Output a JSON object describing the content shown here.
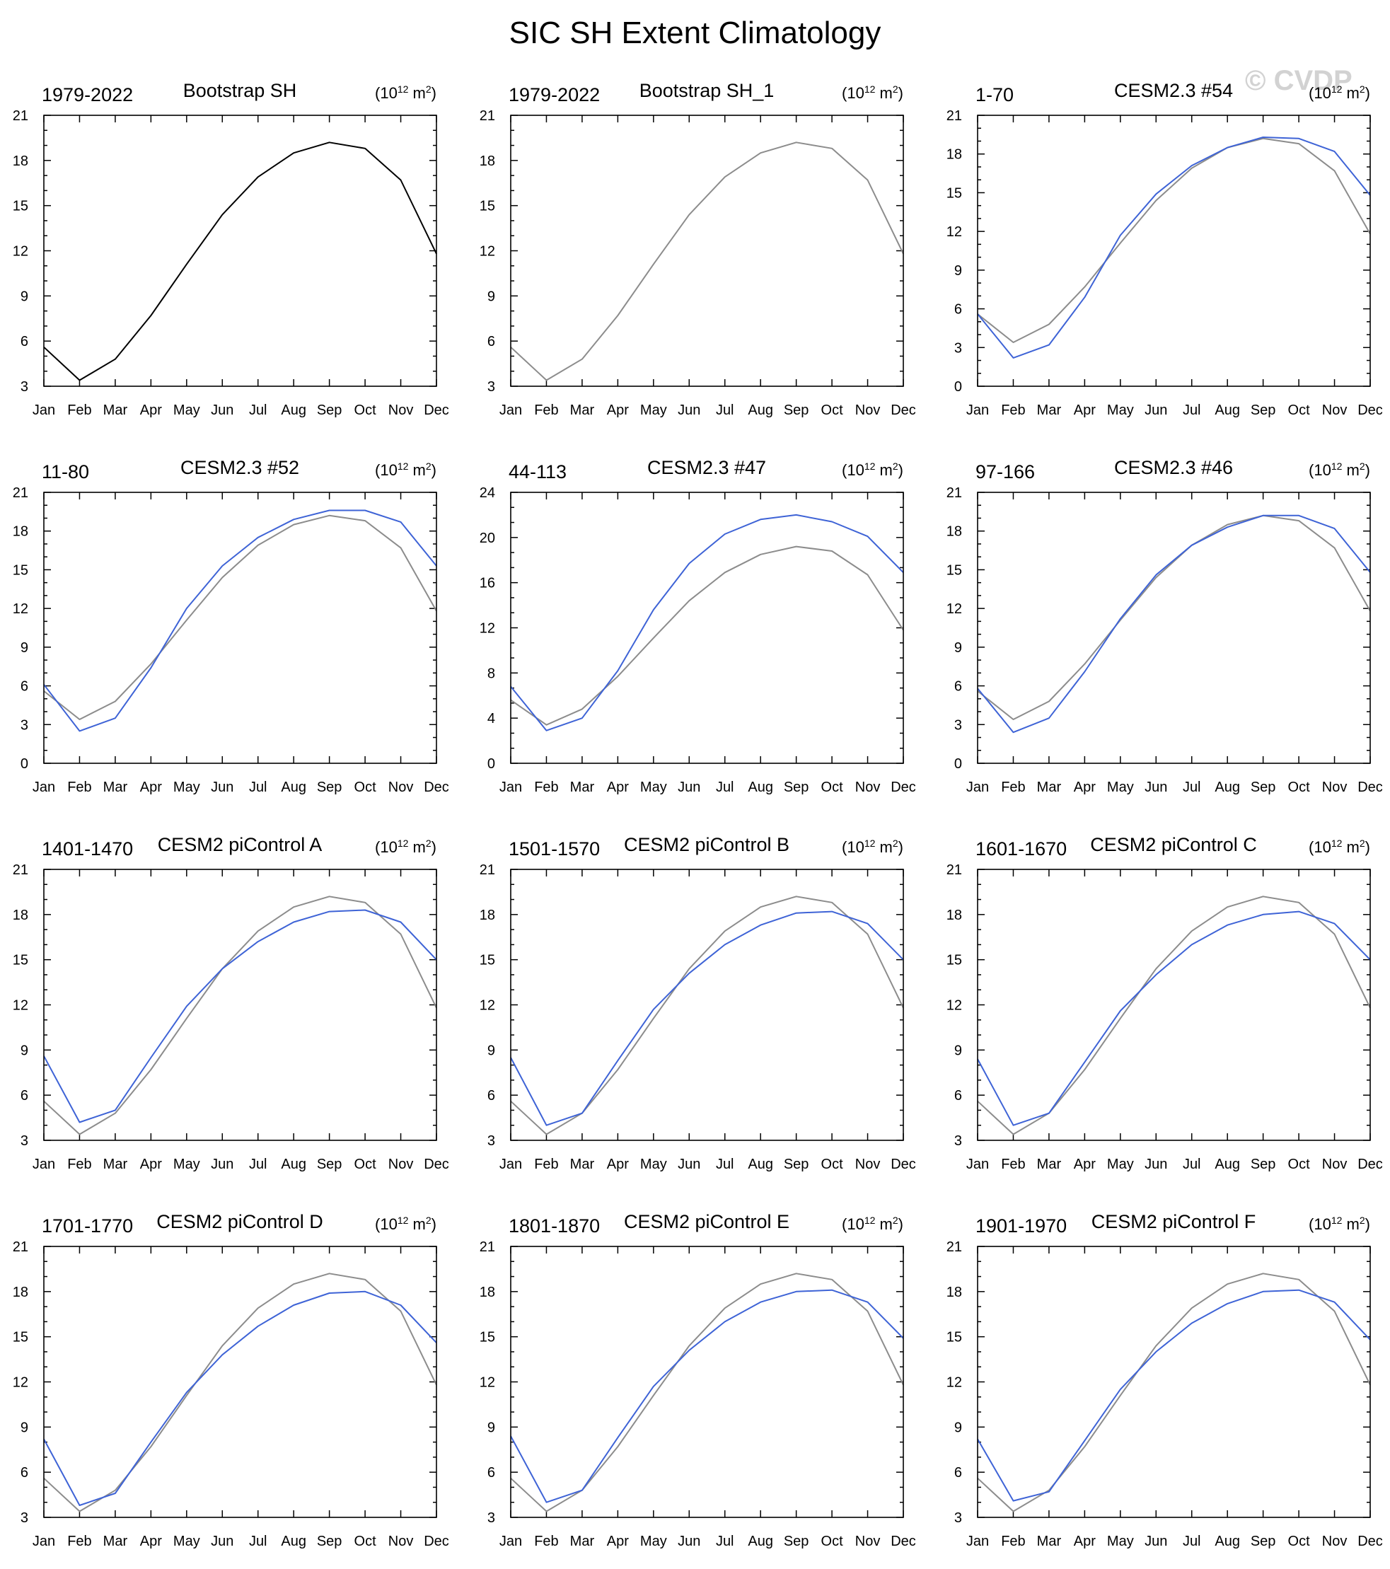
{
  "title": "SIC SH Extent Climatology",
  "watermark": "© CVDP",
  "colors": {
    "reference": "#000000",
    "observed_overlay": "#8c8c8c",
    "model": "#3e63d6"
  },
  "months": [
    "Jan",
    "Feb",
    "Mar",
    "Apr",
    "May",
    "Jun",
    "Jul",
    "Aug",
    "Sep",
    "Oct",
    "Nov",
    "Dec"
  ],
  "chart_data": [
    {
      "type": "line",
      "period": "1979-2022",
      "name": "Bootstrap SH",
      "units_base": "(10",
      "units_exp": "12",
      "units_tail": " m",
      "units_exp2": "2",
      "units_close": ")",
      "ylim": [
        3,
        21
      ],
      "yticks": [
        3,
        6,
        9,
        12,
        15,
        18,
        21
      ],
      "series": [
        {
          "role": "reference",
          "values": [
            5.6,
            3.4,
            4.8,
            7.7,
            11.1,
            14.4,
            16.9,
            18.5,
            19.2,
            18.8,
            16.7,
            11.8
          ]
        }
      ]
    },
    {
      "type": "line",
      "period": "1979-2022",
      "name": "Bootstrap SH_1",
      "units_base": "(10",
      "units_exp": "12",
      "units_tail": " m",
      "units_exp2": "2",
      "units_close": ")",
      "ylim": [
        3,
        21
      ],
      "yticks": [
        3,
        6,
        9,
        12,
        15,
        18,
        21
      ],
      "series": [
        {
          "role": "observed_overlay",
          "values": [
            5.6,
            3.4,
            4.8,
            7.7,
            11.1,
            14.4,
            16.9,
            18.5,
            19.2,
            18.8,
            16.7,
            11.8
          ]
        }
      ]
    },
    {
      "type": "line",
      "period": "1-70",
      "name": "CESM2.3 #54",
      "units_base": "(10",
      "units_exp": "12",
      "units_tail": " m",
      "units_exp2": "2",
      "units_close": ")",
      "ylim": [
        0,
        21
      ],
      "yticks": [
        0,
        3,
        6,
        9,
        12,
        15,
        18,
        21
      ],
      "series": [
        {
          "role": "observed_overlay",
          "values": [
            5.6,
            3.4,
            4.8,
            7.7,
            11.1,
            14.4,
            16.9,
            18.5,
            19.2,
            18.8,
            16.7,
            11.8
          ]
        },
        {
          "role": "model",
          "values": [
            5.6,
            2.2,
            3.2,
            6.9,
            11.7,
            14.9,
            17.1,
            18.5,
            19.3,
            19.2,
            18.2,
            14.8
          ]
        }
      ]
    },
    {
      "type": "line",
      "period": "11-80",
      "name": "CESM2.3 #52",
      "units_base": "(10",
      "units_exp": "12",
      "units_tail": " m",
      "units_exp2": "2",
      "units_close": ")",
      "ylim": [
        0,
        21
      ],
      "yticks": [
        0,
        3,
        6,
        9,
        12,
        15,
        18,
        21
      ],
      "series": [
        {
          "role": "observed_overlay",
          "values": [
            5.6,
            3.4,
            4.8,
            7.7,
            11.1,
            14.4,
            16.9,
            18.5,
            19.2,
            18.8,
            16.7,
            11.8
          ]
        },
        {
          "role": "model",
          "values": [
            6.1,
            2.5,
            3.5,
            7.4,
            12.0,
            15.3,
            17.5,
            18.9,
            19.6,
            19.6,
            18.7,
            15.3
          ]
        }
      ]
    },
    {
      "type": "line",
      "period": "44-113",
      "name": "CESM2.3 #47",
      "units_base": "(10",
      "units_exp": "12",
      "units_tail": " m",
      "units_exp2": "2",
      "units_close": ")",
      "ylim": [
        0,
        24
      ],
      "yticks": [
        0,
        4,
        8,
        12,
        16,
        20,
        24
      ],
      "series": [
        {
          "role": "observed_overlay",
          "values": [
            5.6,
            3.4,
            4.8,
            7.7,
            11.1,
            14.4,
            16.9,
            18.5,
            19.2,
            18.8,
            16.7,
            11.8
          ]
        },
        {
          "role": "model",
          "values": [
            6.8,
            2.9,
            4.0,
            8.2,
            13.6,
            17.7,
            20.3,
            21.6,
            22.0,
            21.4,
            20.1,
            16.9
          ]
        }
      ]
    },
    {
      "type": "line",
      "period": "97-166",
      "name": "CESM2.3 #46",
      "units_base": "(10",
      "units_exp": "12",
      "units_tail": " m",
      "units_exp2": "2",
      "units_close": ")",
      "ylim": [
        0,
        21
      ],
      "yticks": [
        0,
        3,
        6,
        9,
        12,
        15,
        18,
        21
      ],
      "series": [
        {
          "role": "observed_overlay",
          "values": [
            5.6,
            3.4,
            4.8,
            7.7,
            11.1,
            14.4,
            16.9,
            18.5,
            19.2,
            18.8,
            16.7,
            11.8
          ]
        },
        {
          "role": "model",
          "values": [
            5.8,
            2.4,
            3.5,
            7.1,
            11.2,
            14.6,
            16.9,
            18.3,
            19.2,
            19.2,
            18.2,
            14.8
          ]
        }
      ]
    },
    {
      "type": "line",
      "period": "1401-1470",
      "name": "CESM2 piControl A",
      "units_base": "(10",
      "units_exp": "12",
      "units_tail": " m",
      "units_exp2": "2",
      "units_close": ")",
      "ylim": [
        3,
        21
      ],
      "yticks": [
        3,
        6,
        9,
        12,
        15,
        18,
        21
      ],
      "series": [
        {
          "role": "observed_overlay",
          "values": [
            5.6,
            3.4,
            4.8,
            7.7,
            11.1,
            14.4,
            16.9,
            18.5,
            19.2,
            18.8,
            16.7,
            11.8
          ]
        },
        {
          "role": "model",
          "values": [
            8.6,
            4.2,
            5.0,
            8.5,
            11.9,
            14.4,
            16.2,
            17.5,
            18.2,
            18.3,
            17.5,
            15.0
          ]
        }
      ]
    },
    {
      "type": "line",
      "period": "1501-1570",
      "name": "CESM2 piControl B",
      "units_base": "(10",
      "units_exp": "12",
      "units_tail": " m",
      "units_exp2": "2",
      "units_close": ")",
      "ylim": [
        3,
        21
      ],
      "yticks": [
        3,
        6,
        9,
        12,
        15,
        18,
        21
      ],
      "series": [
        {
          "role": "observed_overlay",
          "values": [
            5.6,
            3.4,
            4.8,
            7.7,
            11.1,
            14.4,
            16.9,
            18.5,
            19.2,
            18.8,
            16.7,
            11.8
          ]
        },
        {
          "role": "model",
          "values": [
            8.5,
            4.0,
            4.8,
            8.3,
            11.7,
            14.1,
            16.0,
            17.3,
            18.1,
            18.2,
            17.4,
            15.0
          ]
        }
      ]
    },
    {
      "type": "line",
      "period": "1601-1670",
      "name": "CESM2 piControl C",
      "units_base": "(10",
      "units_exp": "12",
      "units_tail": " m",
      "units_exp2": "2",
      "units_close": ")",
      "ylim": [
        3,
        21
      ],
      "yticks": [
        3,
        6,
        9,
        12,
        15,
        18,
        21
      ],
      "series": [
        {
          "role": "observed_overlay",
          "values": [
            5.6,
            3.4,
            4.8,
            7.7,
            11.1,
            14.4,
            16.9,
            18.5,
            19.2,
            18.8,
            16.7,
            11.8
          ]
        },
        {
          "role": "model",
          "values": [
            8.4,
            4.0,
            4.8,
            8.2,
            11.6,
            14.0,
            16.0,
            17.3,
            18.0,
            18.2,
            17.4,
            15.0
          ]
        }
      ]
    },
    {
      "type": "line",
      "period": "1701-1770",
      "name": "CESM2 piControl D",
      "units_base": "(10",
      "units_exp": "12",
      "units_tail": " m",
      "units_exp2": "2",
      "units_close": ")",
      "ylim": [
        3,
        21
      ],
      "yticks": [
        3,
        6,
        9,
        12,
        15,
        18,
        21
      ],
      "series": [
        {
          "role": "observed_overlay",
          "values": [
            5.6,
            3.4,
            4.8,
            7.7,
            11.1,
            14.4,
            16.9,
            18.5,
            19.2,
            18.8,
            16.7,
            11.8
          ]
        },
        {
          "role": "model",
          "values": [
            8.2,
            3.8,
            4.6,
            8.0,
            11.3,
            13.8,
            15.7,
            17.1,
            17.9,
            18.0,
            17.1,
            14.6
          ]
        }
      ]
    },
    {
      "type": "line",
      "period": "1801-1870",
      "name": "CESM2 piControl E",
      "units_base": "(10",
      "units_exp": "12",
      "units_tail": " m",
      "units_exp2": "2",
      "units_close": ")",
      "ylim": [
        3,
        21
      ],
      "yticks": [
        3,
        6,
        9,
        12,
        15,
        18,
        21
      ],
      "series": [
        {
          "role": "observed_overlay",
          "values": [
            5.6,
            3.4,
            4.8,
            7.7,
            11.1,
            14.4,
            16.9,
            18.5,
            19.2,
            18.8,
            16.7,
            11.8
          ]
        },
        {
          "role": "model",
          "values": [
            8.4,
            4.0,
            4.8,
            8.3,
            11.7,
            14.1,
            16.0,
            17.3,
            18.0,
            18.1,
            17.3,
            14.9
          ]
        }
      ]
    },
    {
      "type": "line",
      "period": "1901-1970",
      "name": "CESM2 piControl F",
      "units_base": "(10",
      "units_exp": "12",
      "units_tail": " m",
      "units_exp2": "2",
      "units_close": ")",
      "ylim": [
        3,
        21
      ],
      "yticks": [
        3,
        6,
        9,
        12,
        15,
        18,
        21
      ],
      "series": [
        {
          "role": "observed_overlay",
          "values": [
            5.6,
            3.4,
            4.8,
            7.7,
            11.1,
            14.4,
            16.9,
            18.5,
            19.2,
            18.8,
            16.7,
            11.8
          ]
        },
        {
          "role": "model",
          "values": [
            8.2,
            4.1,
            4.7,
            8.1,
            11.5,
            14.0,
            15.9,
            17.2,
            18.0,
            18.1,
            17.3,
            14.8
          ]
        }
      ]
    }
  ]
}
